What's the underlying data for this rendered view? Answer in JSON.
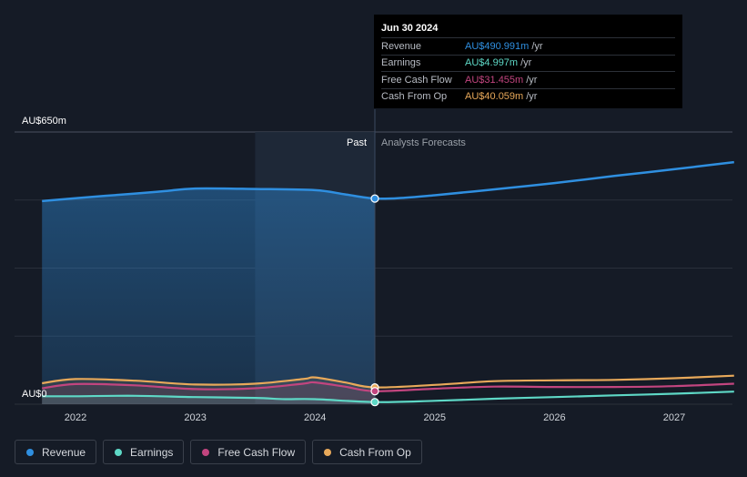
{
  "chart_data": {
    "type": "area",
    "y_axis": {
      "top_label": "AU$650m",
      "bottom_label": "AU$0",
      "ylim": [
        0,
        650
      ]
    },
    "x_axis": {
      "ticks": [
        "2022",
        "2023",
        "2024",
        "2025",
        "2026",
        "2027"
      ]
    },
    "regions": {
      "past_label": "Past",
      "forecast_label": "Analysts Forecasts",
      "divider_x": 2024.5
    },
    "series": [
      {
        "name": "Revenue",
        "color": "#2f8fe0",
        "points": [
          [
            2021.72,
            485
          ],
          [
            2022.0,
            492
          ],
          [
            2022.5,
            503
          ],
          [
            2022.75,
            509
          ],
          [
            2023.0,
            515
          ],
          [
            2023.5,
            514
          ],
          [
            2024.0,
            511
          ],
          [
            2024.25,
            501
          ],
          [
            2024.5,
            491
          ],
          [
            2024.75,
            493
          ],
          [
            2025.0,
            499
          ],
          [
            2025.5,
            513
          ],
          [
            2026.0,
            528
          ],
          [
            2026.5,
            545
          ],
          [
            2027.0,
            561
          ],
          [
            2027.5,
            578
          ]
        ]
      },
      {
        "name": "Cash From Op",
        "color": "#e8a95a",
        "points": [
          [
            2021.72,
            50
          ],
          [
            2022.0,
            60
          ],
          [
            2022.5,
            56
          ],
          [
            2023.0,
            47
          ],
          [
            2023.5,
            49
          ],
          [
            2023.9,
            60
          ],
          [
            2024.0,
            64
          ],
          [
            2024.25,
            52
          ],
          [
            2024.5,
            40
          ],
          [
            2025.0,
            46
          ],
          [
            2025.5,
            55
          ],
          [
            2026.0,
            57
          ],
          [
            2026.5,
            58
          ],
          [
            2027.0,
            62
          ],
          [
            2027.5,
            68
          ]
        ]
      },
      {
        "name": "Free Cash Flow",
        "color": "#c2457f",
        "points": [
          [
            2021.72,
            38
          ],
          [
            2022.0,
            48
          ],
          [
            2022.5,
            45
          ],
          [
            2023.0,
            36
          ],
          [
            2023.5,
            38
          ],
          [
            2023.9,
            49
          ],
          [
            2024.0,
            52
          ],
          [
            2024.25,
            42
          ],
          [
            2024.5,
            31
          ],
          [
            2025.0,
            37
          ],
          [
            2025.5,
            42
          ],
          [
            2026.0,
            41
          ],
          [
            2026.5,
            41
          ],
          [
            2027.0,
            43
          ],
          [
            2027.5,
            49
          ]
        ]
      },
      {
        "name": "Earnings",
        "color": "#5ed8c6",
        "points": [
          [
            2021.72,
            19
          ],
          [
            2022.0,
            19
          ],
          [
            2022.5,
            20
          ],
          [
            2023.0,
            17
          ],
          [
            2023.5,
            15
          ],
          [
            2023.75,
            12
          ],
          [
            2024.0,
            12
          ],
          [
            2024.5,
            5
          ],
          [
            2025.0,
            8
          ],
          [
            2025.5,
            13
          ],
          [
            2026.0,
            17
          ],
          [
            2026.5,
            21
          ],
          [
            2027.0,
            25
          ],
          [
            2027.5,
            30
          ]
        ]
      }
    ],
    "highlight": {
      "x": 2024.5,
      "values": {
        "Revenue": 491,
        "Cash From Op": 40,
        "Free Cash Flow": 31,
        "Earnings": 5
      }
    },
    "shaded_band": {
      "from": 2023.5,
      "to": 2024.5
    }
  },
  "tooltip": {
    "date": "Jun 30 2024",
    "rows": [
      {
        "name": "Revenue",
        "value": "AU$490.991m",
        "unit": "/yr",
        "color": "#2f8fe0"
      },
      {
        "name": "Earnings",
        "value": "AU$4.997m",
        "unit": "/yr",
        "color": "#5ed8c6"
      },
      {
        "name": "Free Cash Flow",
        "value": "AU$31.455m",
        "unit": "/yr",
        "color": "#c2457f"
      },
      {
        "name": "Cash From Op",
        "value": "AU$40.059m",
        "unit": "/yr",
        "color": "#e8a95a"
      }
    ]
  },
  "legend": [
    {
      "label": "Revenue",
      "color": "#2f8fe0"
    },
    {
      "label": "Earnings",
      "color": "#5ed8c6"
    },
    {
      "label": "Free Cash Flow",
      "color": "#c2457f"
    },
    {
      "label": "Cash From Op",
      "color": "#e8a95a"
    }
  ]
}
